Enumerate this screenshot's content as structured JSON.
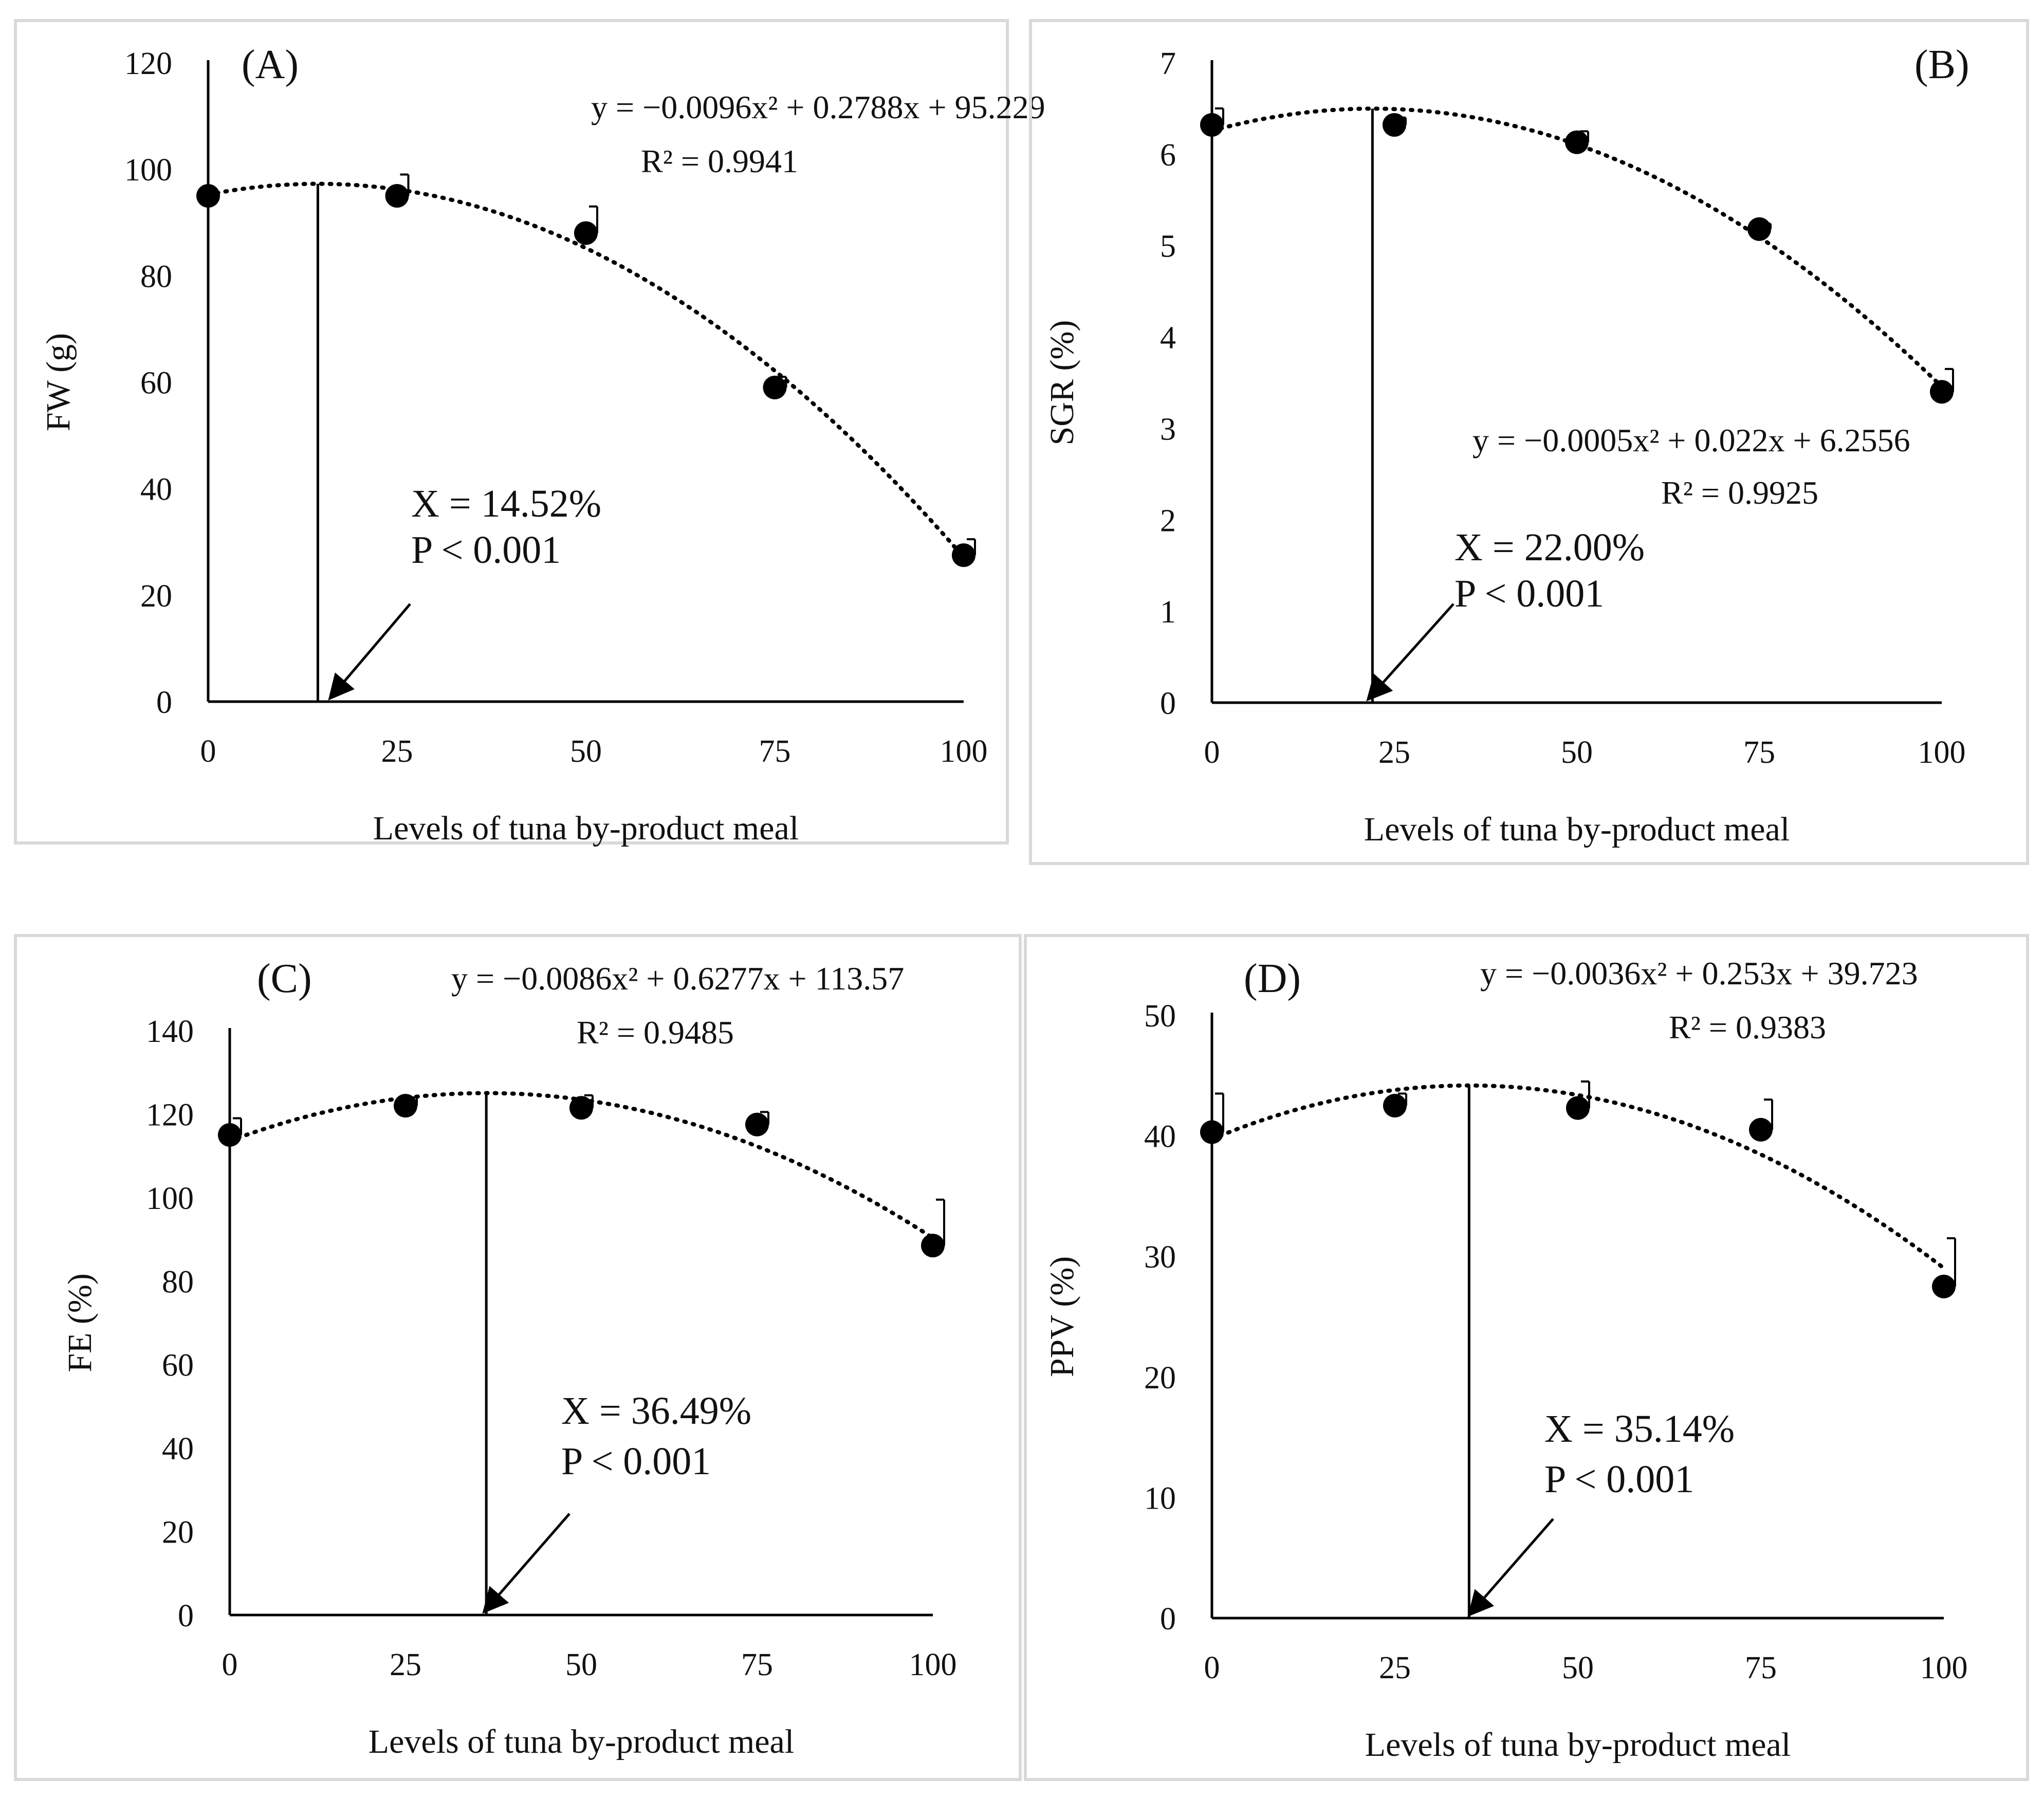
{
  "figure": {
    "colors": {
      "ink": "#000000",
      "panel_border": "#d9d9d9",
      "gray_text": "#8a8a8a",
      "background": "#ffffff"
    }
  },
  "chart_data": [
    {
      "id": "A",
      "type": "scatter",
      "panel_label": "(A)",
      "xlabel": "Levels of tuna by-product meal",
      "ylabel": "FW (g)",
      "x_ticks": [
        "0",
        "25",
        "50",
        "75",
        "100"
      ],
      "y_ticks": [
        "0",
        "20",
        "40",
        "60",
        "80",
        "100",
        "120"
      ],
      "xlim": [
        0,
        100
      ],
      "ylim": [
        0,
        120
      ],
      "series": [
        {
          "name": "FW",
          "x": [
            0,
            25,
            50,
            75,
            100
          ],
          "y": [
            95,
            95,
            88,
            59,
            27.5
          ],
          "error": [
            0,
            4,
            5,
            2,
            3
          ]
        }
      ],
      "trendline": {
        "type": "polynomial-2",
        "a": -0.0096,
        "b": 0.2788,
        "c": 95.229
      },
      "equation": "y = −0.0096x² + 0.2788x + 95.229",
      "r2": "R² = 0.9941",
      "optimum": {
        "x": 14.52,
        "x_label": "X = 14.52%",
        "p_label": "P < 0.001"
      },
      "label_color": "#111111"
    },
    {
      "id": "B",
      "type": "scatter",
      "panel_label": "(B)",
      "xlabel": "Levels of tuna by-product meal",
      "ylabel": "SGR (%)",
      "x_ticks": [
        "0",
        "25",
        "50",
        "75",
        "100"
      ],
      "y_ticks": [
        "0",
        "1",
        "2",
        "3",
        "4",
        "5",
        "6",
        "7"
      ],
      "xlim": [
        0,
        100
      ],
      "ylim": [
        0,
        7
      ],
      "series": [
        {
          "name": "SGR",
          "x": [
            0,
            25,
            50,
            75,
            100
          ],
          "y": [
            6.32,
            6.32,
            6.13,
            5.18,
            3.4
          ],
          "error": [
            0.18,
            0.08,
            0.12,
            0.06,
            0.25
          ]
        }
      ],
      "trendline": {
        "type": "polynomial-2",
        "a": -0.0005,
        "b": 0.022,
        "c": 6.2556
      },
      "equation": "y = −0.0005x² + 0.022x + 6.2556",
      "r2": "R² = 0.9925",
      "optimum": {
        "x": 22.0,
        "x_label": "X = 22.00%",
        "p_label": "P < 0.001"
      },
      "label_color": "#8a8a8a"
    },
    {
      "id": "C",
      "type": "scatter",
      "panel_label": "(C)",
      "xlabel": "Levels of tuna by-product meal",
      "ylabel": "FE (%)",
      "x_ticks": [
        "0",
        "25",
        "50",
        "75",
        "100"
      ],
      "y_ticks": [
        "0",
        "20",
        "40",
        "60",
        "80",
        "100",
        "120",
        "140"
      ],
      "xlim": [
        0,
        100
      ],
      "ylim": [
        0,
        140
      ],
      "series": [
        {
          "name": "FE",
          "x": [
            0,
            25,
            50,
            75,
            100
          ],
          "y": [
            115,
            122,
            121.5,
            117.5,
            88.5
          ],
          "error": [
            4,
            2,
            3,
            3,
            11
          ]
        }
      ],
      "trendline": {
        "type": "polynomial-2",
        "a": -0.0086,
        "b": 0.6277,
        "c": 113.57
      },
      "equation": "y = −0.0086x² + 0.6277x + 113.57",
      "r2": "R² = 0.9485",
      "optimum": {
        "x": 36.49,
        "x_label": "X = 36.49%",
        "p_label": "P < 0.001"
      },
      "label_color": "#111111"
    },
    {
      "id": "D",
      "type": "scatter",
      "panel_label": "(D)",
      "xlabel": "Levels of tuna by-product meal",
      "ylabel": "PPV (%)",
      "x_ticks": [
        "0",
        "25",
        "50",
        "75",
        "100"
      ],
      "y_ticks": [
        "0",
        "10",
        "20",
        "30",
        "40",
        "50"
      ],
      "xlim": [
        0,
        100
      ],
      "ylim": [
        0,
        50
      ],
      "series": [
        {
          "name": "PPV",
          "x": [
            0,
            25,
            50,
            75,
            100
          ],
          "y": [
            40.3,
            42.5,
            42.3,
            40.5,
            27.5
          ],
          "error": [
            3.2,
            1,
            2.2,
            2.5,
            4
          ]
        }
      ],
      "trendline": {
        "type": "polynomial-2",
        "a": -0.0036,
        "b": 0.253,
        "c": 39.723
      },
      "equation": "y = −0.0036x² + 0.253x + 39.723",
      "r2": "R² = 0.9383",
      "optimum": {
        "x": 35.14,
        "x_label": "X = 35.14%",
        "p_label": "P < 0.001"
      },
      "label_color": "#111111"
    }
  ]
}
